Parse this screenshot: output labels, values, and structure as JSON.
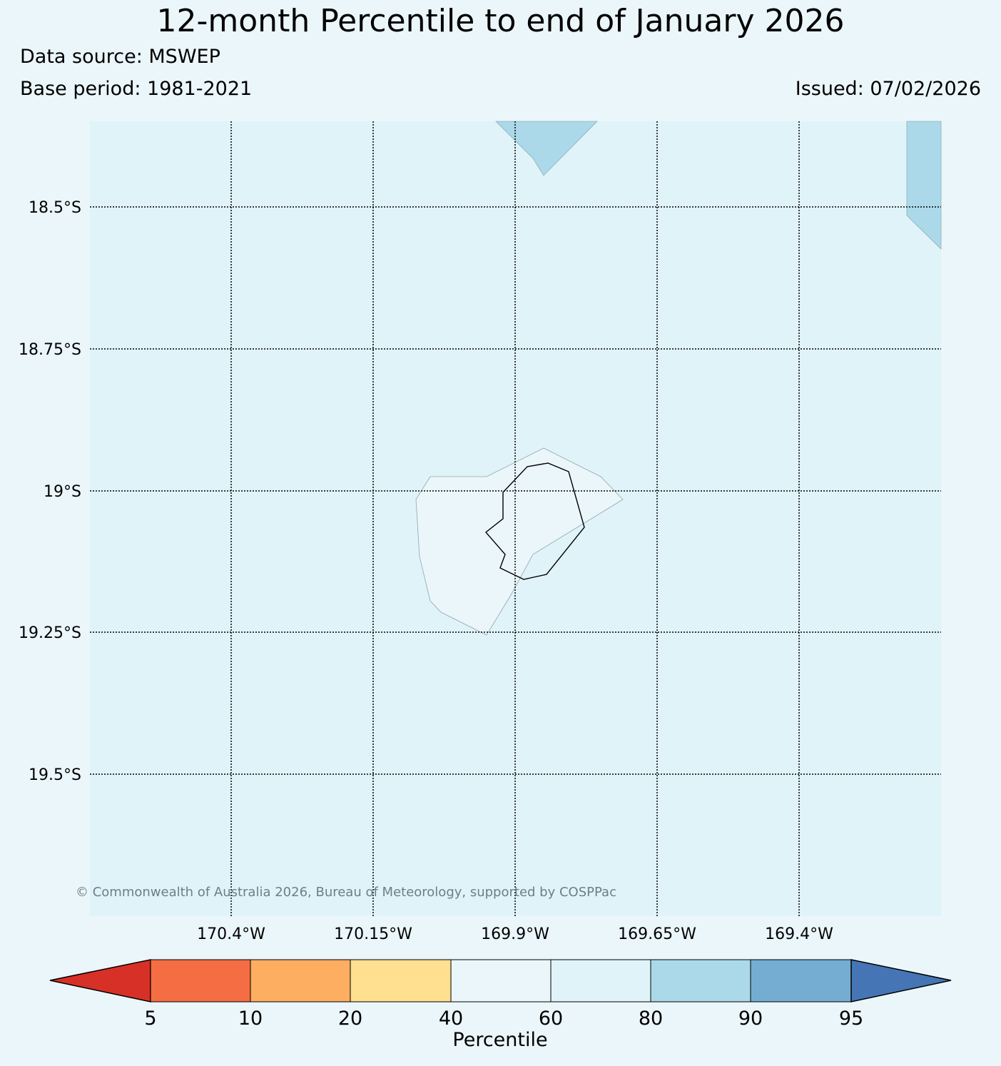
{
  "header": {
    "title": "12-month Percentile to end of January 2026",
    "data_source": "Data source: MSWEP",
    "base_period": "Base period: 1981-2021",
    "issued": "Issued: 07/02/2026"
  },
  "map": {
    "background_color": "#e0f3f8",
    "lat_labels": [
      "18.5°S",
      "18.75°S",
      "19°S",
      "19.25°S",
      "19.5°S"
    ],
    "lon_labels": [
      "170.4°W",
      "170.15°W",
      "169.9°W",
      "169.65°W",
      "169.4°W"
    ],
    "copyright": "© Commonwealth of Australia 2026, Bureau of Meteorology, supported by COSPPac",
    "regions": [
      {
        "name": "80-90 percentile",
        "color": "#abd9e9"
      },
      {
        "name": "40-60 percentile",
        "color": "#ebf6fa"
      }
    ]
  },
  "legend": {
    "label": "Percentile",
    "ticks": [
      "5",
      "10",
      "20",
      "40",
      "60",
      "80",
      "90",
      "95"
    ],
    "colors": [
      "#d73027",
      "#f46d43",
      "#fdae61",
      "#fee090",
      "#ebf6fa",
      "#e0f3f8",
      "#abd9e9",
      "#74add1",
      "#4575b4"
    ]
  }
}
